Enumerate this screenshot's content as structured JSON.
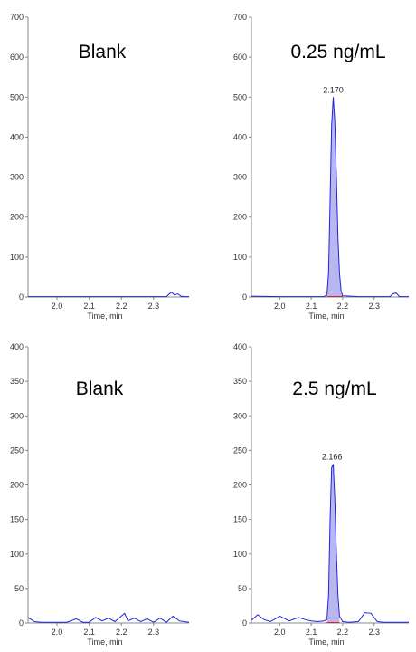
{
  "chart_data": [
    {
      "type": "line",
      "title": "Blank",
      "xlabel": "Time, min",
      "ylabel": "",
      "xlim": [
        1.91,
        2.41
      ],
      "ylim": [
        0,
        700
      ],
      "yticks": [
        0,
        100,
        200,
        300,
        400,
        500,
        600,
        700
      ],
      "xticks": [
        "2.0",
        "2.1",
        "2.2",
        "2.3"
      ],
      "peak_label": "",
      "series": [
        {
          "x": [
            1.91,
            2.0,
            2.1,
            2.2,
            2.34,
            2.355,
            2.365,
            2.375,
            2.385,
            2.395,
            2.41
          ],
          "values": [
            1,
            1,
            1,
            1,
            1,
            12,
            5,
            8,
            2,
            1,
            1
          ]
        }
      ],
      "shaded": false
    },
    {
      "type": "line",
      "title": "0.25 ng/mL",
      "xlabel": "Time, min",
      "ylabel": "",
      "xlim": [
        1.91,
        2.41
      ],
      "ylim": [
        0,
        700
      ],
      "yticks": [
        0,
        100,
        200,
        300,
        400,
        500,
        600,
        700
      ],
      "xticks": [
        "2.0",
        "2.1",
        "2.2",
        "2.3"
      ],
      "peak_label": "2.170",
      "peak_x": 2.17,
      "peak_y": 500,
      "series": [
        {
          "x": [
            1.91,
            2.0,
            2.1,
            2.14,
            2.15,
            2.155,
            2.16,
            2.165,
            2.17,
            2.175,
            2.18,
            2.185,
            2.19,
            2.195,
            2.2,
            2.25,
            2.35,
            2.36,
            2.37,
            2.38,
            2.41
          ],
          "values": [
            2,
            1,
            1,
            1,
            5,
            60,
            240,
            430,
            500,
            440,
            300,
            150,
            60,
            15,
            3,
            1,
            1,
            8,
            10,
            1,
            1
          ]
        }
      ],
      "shaded": true,
      "shade_x": [
        2.145,
        2.205
      ]
    },
    {
      "type": "line",
      "title": "Blank",
      "xlabel": "Time, min",
      "ylabel": "",
      "xlim": [
        1.91,
        2.41
      ],
      "ylim": [
        0,
        400
      ],
      "yticks": [
        0,
        50,
        100,
        150,
        200,
        250,
        300,
        350,
        400
      ],
      "xticks": [
        "2.0",
        "2.1",
        "2.2",
        "2.3"
      ],
      "peak_label": "",
      "series": [
        {
          "x": [
            1.91,
            1.93,
            1.95,
            1.98,
            2.0,
            2.03,
            2.06,
            2.08,
            2.1,
            2.12,
            2.14,
            2.16,
            2.18,
            2.2,
            2.21,
            2.22,
            2.24,
            2.26,
            2.28,
            2.3,
            2.32,
            2.34,
            2.36,
            2.38,
            2.41
          ],
          "values": [
            8,
            2,
            1,
            1,
            1,
            1,
            6,
            1,
            1,
            8,
            3,
            7,
            2,
            10,
            14,
            3,
            7,
            2,
            6,
            1,
            7,
            1,
            10,
            3,
            1
          ]
        }
      ],
      "shaded": false
    },
    {
      "type": "line",
      "title": "2.5 ng/mL",
      "xlabel": "Time, min",
      "ylabel": "",
      "xlim": [
        1.91,
        2.41
      ],
      "ylim": [
        0,
        400
      ],
      "yticks": [
        0,
        50,
        100,
        150,
        200,
        250,
        300,
        350,
        400
      ],
      "xticks": [
        "2.0",
        "2.1",
        "2.2",
        "2.3"
      ],
      "peak_label": "2.166",
      "peak_x": 2.166,
      "peak_y": 230,
      "series": [
        {
          "x": [
            1.91,
            1.93,
            1.95,
            1.97,
            1.99,
            2.0,
            2.03,
            2.06,
            2.08,
            2.1,
            2.12,
            2.14,
            2.15,
            2.155,
            2.16,
            2.165,
            2.17,
            2.175,
            2.18,
            2.185,
            2.19,
            2.2,
            2.22,
            2.25,
            2.27,
            2.29,
            2.31,
            2.33,
            2.36,
            2.41
          ],
          "values": [
            4,
            12,
            5,
            2,
            7,
            10,
            3,
            8,
            5,
            3,
            2,
            3,
            5,
            40,
            150,
            225,
            230,
            180,
            100,
            40,
            10,
            2,
            1,
            2,
            15,
            14,
            2,
            1,
            1,
            1
          ]
        }
      ],
      "shaded": true,
      "shade_x": [
        2.15,
        2.195
      ]
    }
  ],
  "colors": {
    "trace": "#2222dd",
    "fill": "#b0b0ee",
    "baseline": "#dd2222",
    "axis": "#8a8a8a"
  }
}
